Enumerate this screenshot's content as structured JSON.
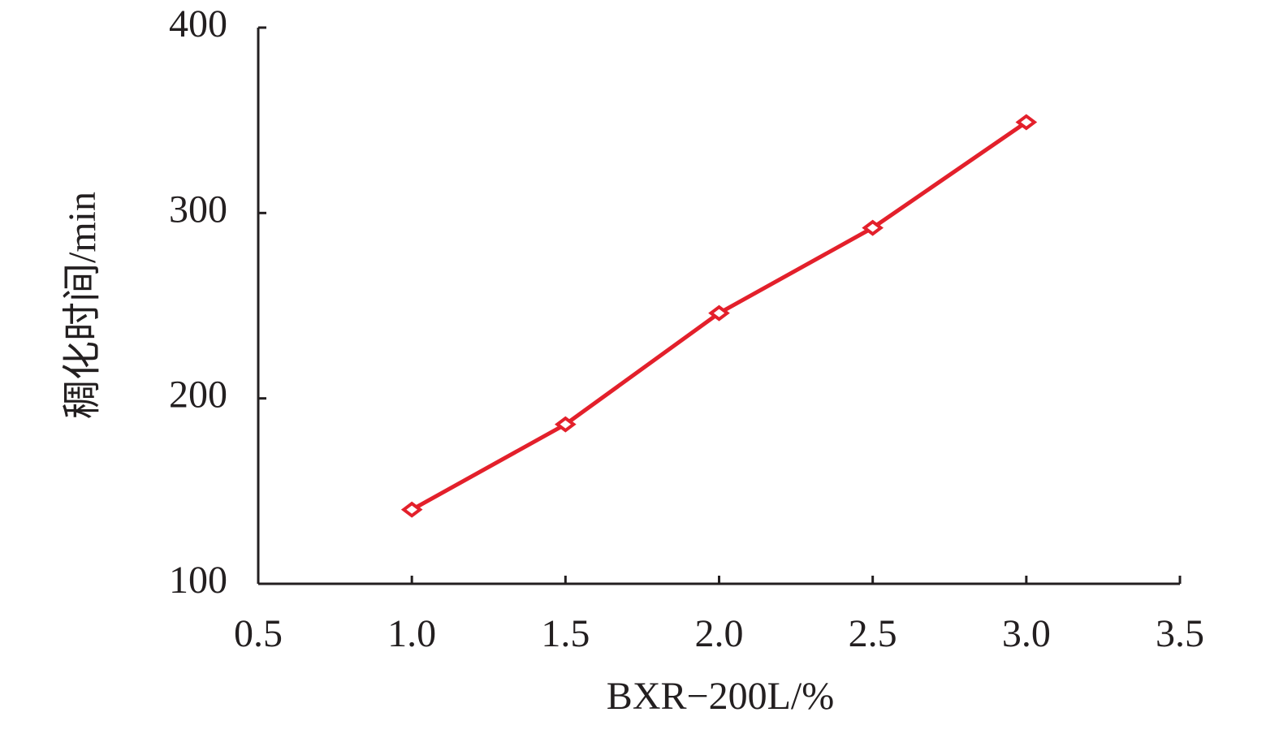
{
  "chart_data": {
    "type": "line",
    "x_label": "BXR−200L/%",
    "y_label": "稠化时间/min",
    "x": [
      1.0,
      1.5,
      2.0,
      2.5,
      3.0
    ],
    "series": [
      {
        "name": "稠化时间",
        "color": "#e3202b",
        "values": [
          140,
          186,
          246,
          292,
          349
        ]
      }
    ],
    "xlim": [
      0.5,
      3.5
    ],
    "xticks": [
      0.5,
      {
        "value": 1,
        "label": "1.0"
      },
      1.5,
      {
        "value": 2,
        "label": "2.0"
      },
      2.5,
      {
        "value": 3,
        "label": "3.0"
      },
      3.5
    ],
    "ylim": [
      100,
      400
    ],
    "yticks": [
      100,
      200,
      300,
      400
    ],
    "grid": false
  }
}
